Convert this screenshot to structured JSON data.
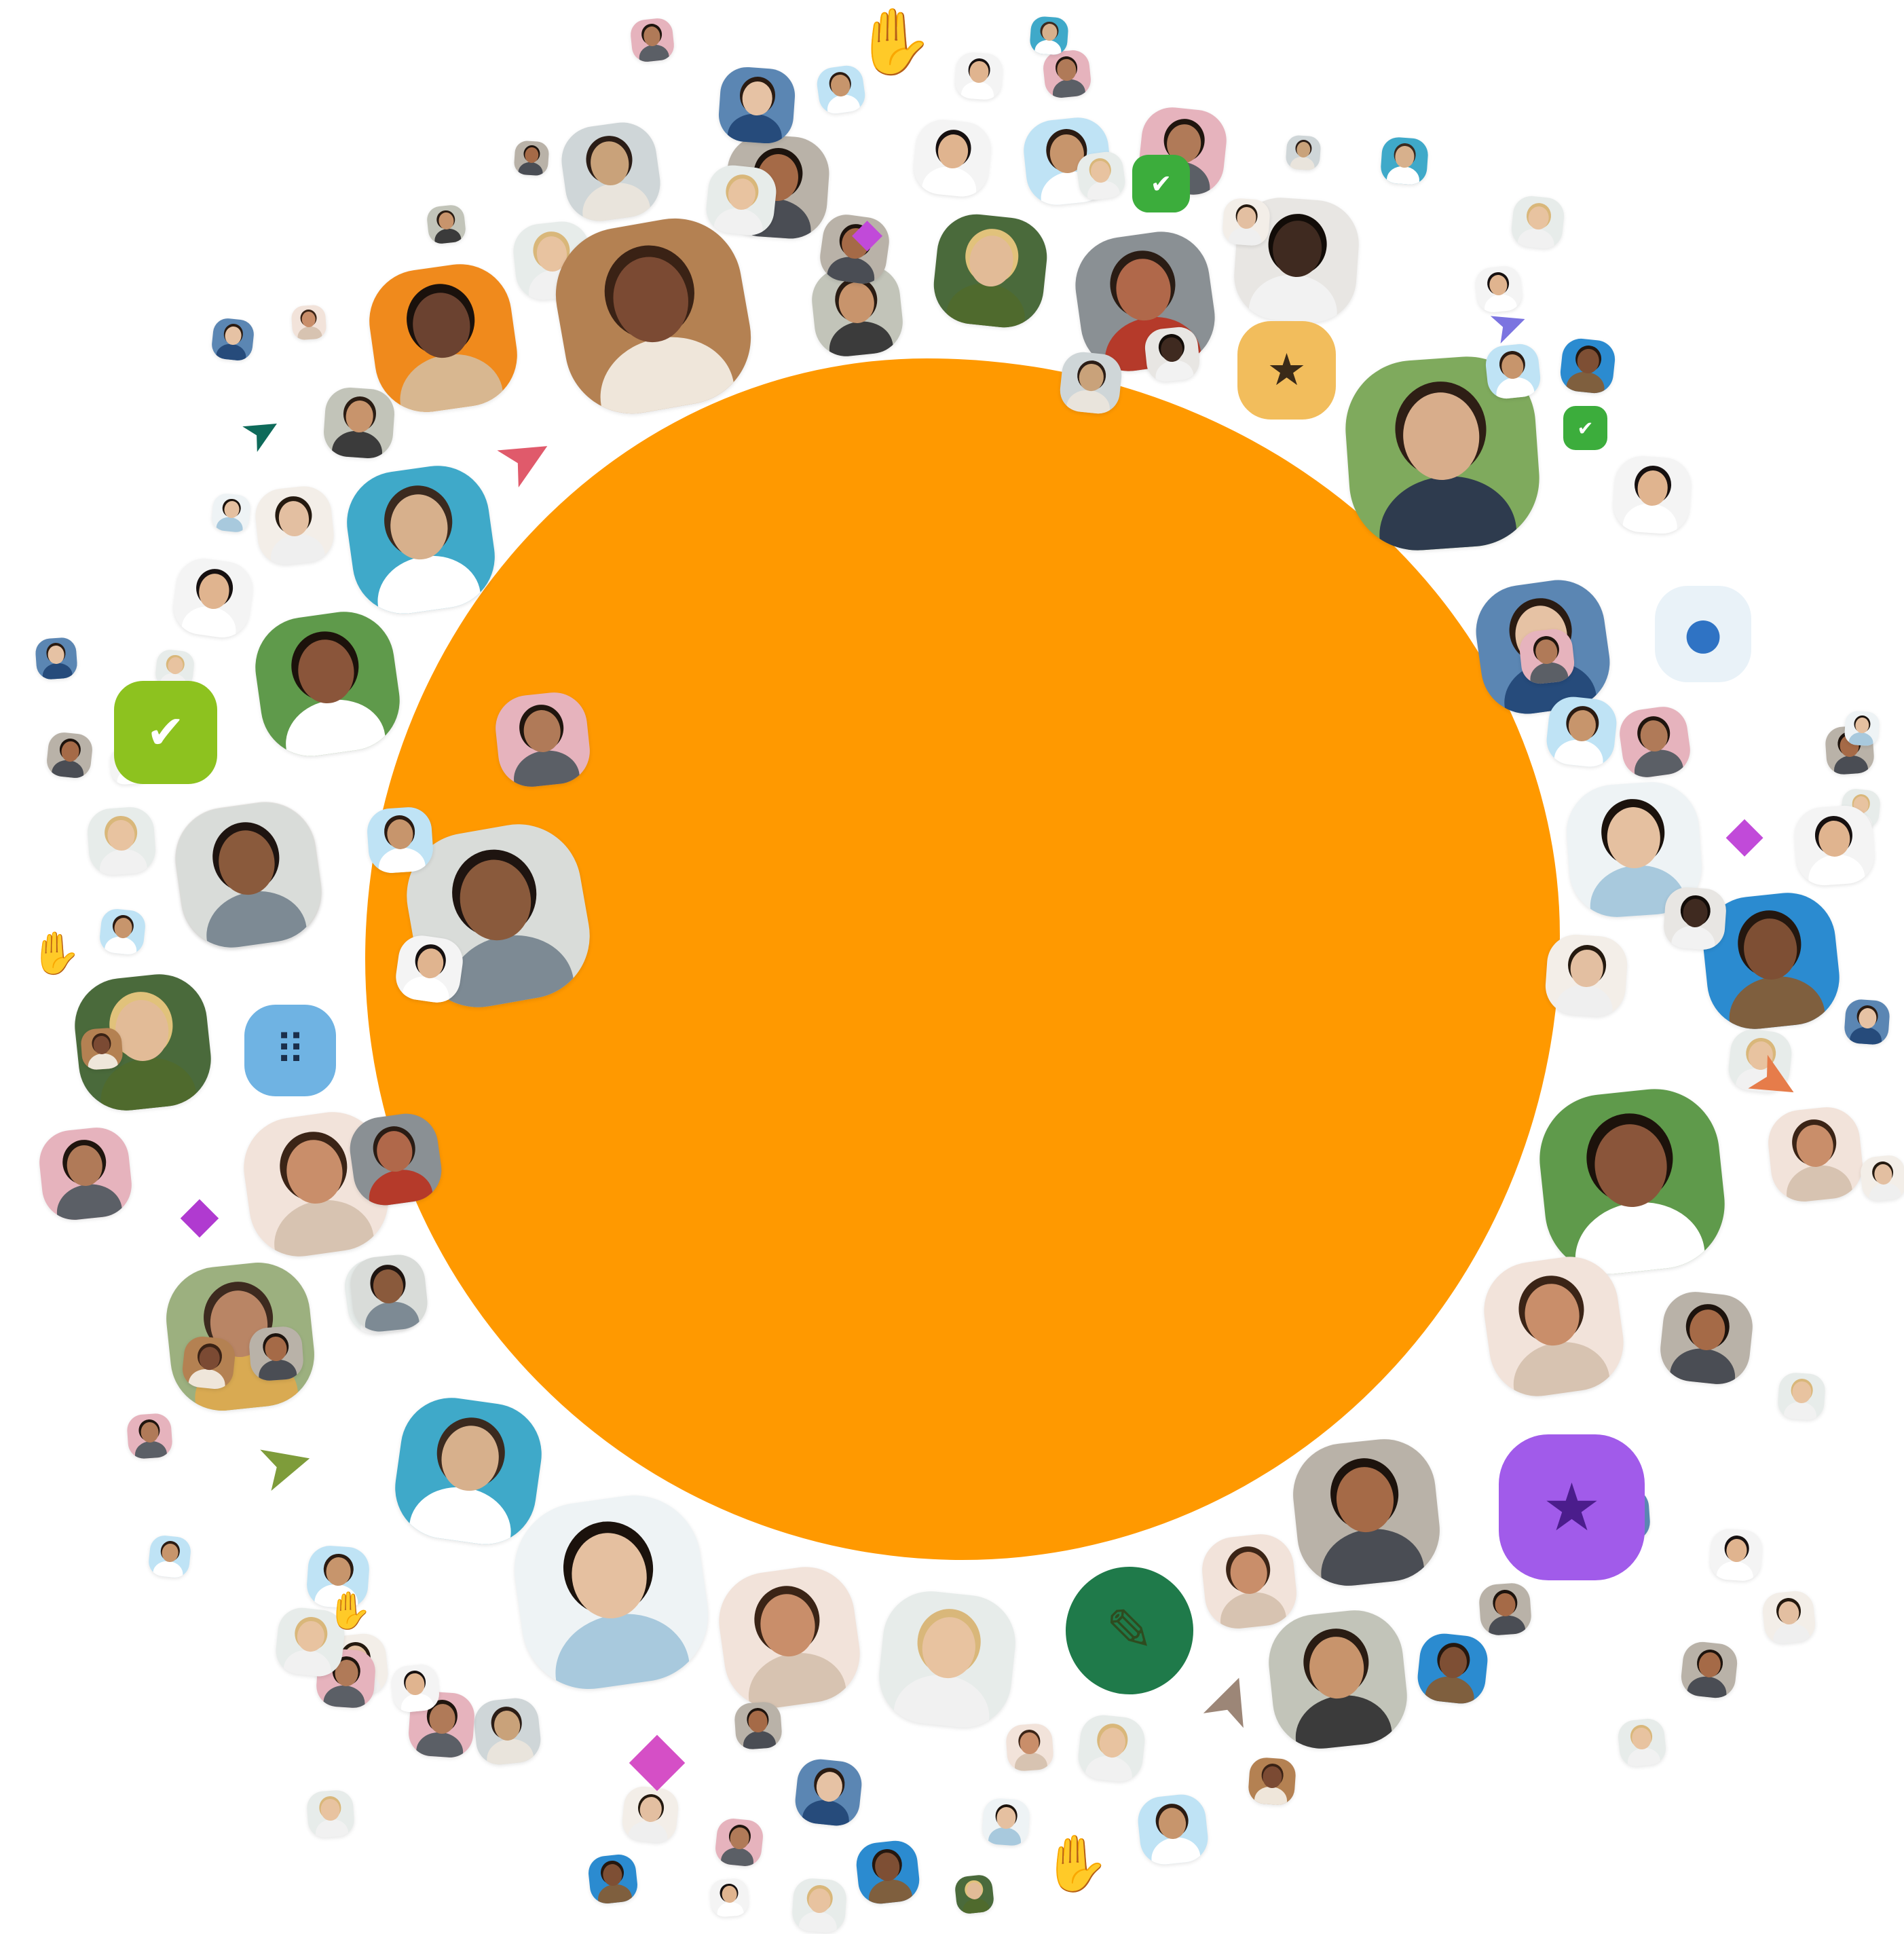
{
  "palette": {
    "background": "#ffffff",
    "center_blob": "#FF9900"
  },
  "center": {
    "name": "center-blob",
    "color": "#FF9900"
  },
  "avatars": [
    {
      "tone": "#c9a27a",
      "hair": "#2b1d16",
      "shirt": "#e9e4dc",
      "bg": "#cfd6d8"
    },
    {
      "tone": "#8a5a3c",
      "hair": "#1e1410",
      "shirt": "#7d8a94",
      "bg": "#d9dcd9"
    },
    {
      "tone": "#e8c3a0",
      "hair": "#d9b77a",
      "shirt": "#f1f1f1",
      "bg": "#e7ecea"
    },
    {
      "tone": "#6b4230",
      "hair": "#1a110c",
      "shirt": "#d8b790",
      "bg": "#f08a1c"
    },
    {
      "tone": "#7b4a33",
      "hair": "#3a2215",
      "shirt": "#efe6da",
      "bg": "#b48152"
    },
    {
      "tone": "#d7b08c",
      "hair": "#3b2a1f",
      "shirt": "#ffffff",
      "bg": "#3fa9c9"
    },
    {
      "tone": "#b98565",
      "hair": "#3d2a1f",
      "shirt": "#d9aa52",
      "bg": "#9cb07f"
    },
    {
      "tone": "#c8946c",
      "hair": "#2a1c13",
      "shirt": "#3b3b3b",
      "bg": "#c2c4b9"
    },
    {
      "tone": "#e3bfa1",
      "hair": "#24190f",
      "shirt": "#efefef",
      "bg": "#f3eee8"
    },
    {
      "tone": "#a56a47",
      "hair": "#1d130d",
      "shirt": "#4a4d54",
      "bg": "#b9b2a8"
    },
    {
      "tone": "#e2bb97",
      "hair": "#e1c27b",
      "shirt": "#4f6a2d",
      "bg": "#4a6a3b"
    },
    {
      "tone": "#b0684a",
      "hair": "#2a1c14",
      "shirt": "#b53a2a",
      "bg": "#8a9094"
    },
    {
      "tone": "#3f2a20",
      "hair": "#120c08",
      "shirt": "#f2f2f2",
      "bg": "#e8e6e3"
    },
    {
      "tone": "#d8ad8b",
      "hair": "#2e1e15",
      "shirt": "#2e3b4e",
      "bg": "#7faa5d"
    },
    {
      "tone": "#c7956c",
      "hair": "#2b1b12",
      "shirt": "#ffffff",
      "bg": "#bfe3f5"
    },
    {
      "tone": "#e6c2a4",
      "hair": "#2a1b12",
      "shirt": "#264b7b",
      "bg": "#5b86b3"
    },
    {
      "tone": "#e0b48f",
      "hair": "#161010",
      "shirt": "#ffffff",
      "bg": "#f4f4f4"
    },
    {
      "tone": "#7e4f34",
      "hair": "#24170f",
      "shirt": "#7f5f3e",
      "bg": "#2b8bd0"
    },
    {
      "tone": "#e5c0a0",
      "hair": "#1b120c",
      "shirt": "#a8c9dd",
      "bg": "#eef3f5"
    },
    {
      "tone": "#8a553a",
      "hair": "#1c120b",
      "shirt": "#ffffff",
      "bg": "#5f9a4b"
    },
    {
      "tone": "#c98e6a",
      "hair": "#3b2416",
      "shirt": "#d7c3b1",
      "bg": "#f2e3da"
    },
    {
      "tone": "#b07a58",
      "hair": "#1f150e",
      "shirt": "#5b5f66",
      "bg": "#e6b3bd"
    }
  ],
  "badges": [
    {
      "symbol": "✔",
      "color": "#3CAD3C",
      "symbol_color": "#ffffff",
      "shape": "burst"
    },
    {
      "symbol": "✔",
      "color": "#8DC21F",
      "symbol_color": "#ffffff",
      "shape": "burst"
    },
    {
      "symbol": "★",
      "color": "#F2BD5C",
      "symbol_color": "#3a2a18",
      "shape": "rounded"
    },
    {
      "symbol": "★",
      "color": "#A15BEA",
      "symbol_color": "#4b1d8c",
      "shape": "rounded"
    },
    {
      "symbol": "⠿",
      "color": "#6FB3E3",
      "symbol_color": "#1b2f4b",
      "shape": "rounded"
    },
    {
      "symbol": "●",
      "color": "#E9F2F8",
      "symbol_color": "#2f73c4",
      "shape": "rounded"
    },
    {
      "symbol": "✎",
      "color": "#1F7A4A",
      "symbol_color": "#2e4b1f",
      "shape": "round"
    }
  ],
  "glyphs": [
    {
      "symbol": "➤",
      "color": "#0E6A5A"
    },
    {
      "symbol": "➤",
      "color": "#E05A6B"
    },
    {
      "symbol": "➤",
      "color": "#7B74E0"
    },
    {
      "symbol": "➤",
      "color": "#7E9C3A"
    },
    {
      "symbol": "➤",
      "color": "#E67C4A"
    },
    {
      "symbol": "➤",
      "color": "#9C8677"
    },
    {
      "symbol": "✋",
      "color": "#0E6A5A"
    },
    {
      "symbol": "✋",
      "color": "#F0B13A"
    },
    {
      "symbol": "✋",
      "color": "#9C8677"
    },
    {
      "symbol": "✋",
      "color": "#3C8BC7"
    },
    {
      "symbol": "◆",
      "color": "#C14AD9"
    },
    {
      "symbol": "◆",
      "color": "#B03AD0"
    },
    {
      "symbol": "◆",
      "color": "#D54FC6"
    }
  ]
}
